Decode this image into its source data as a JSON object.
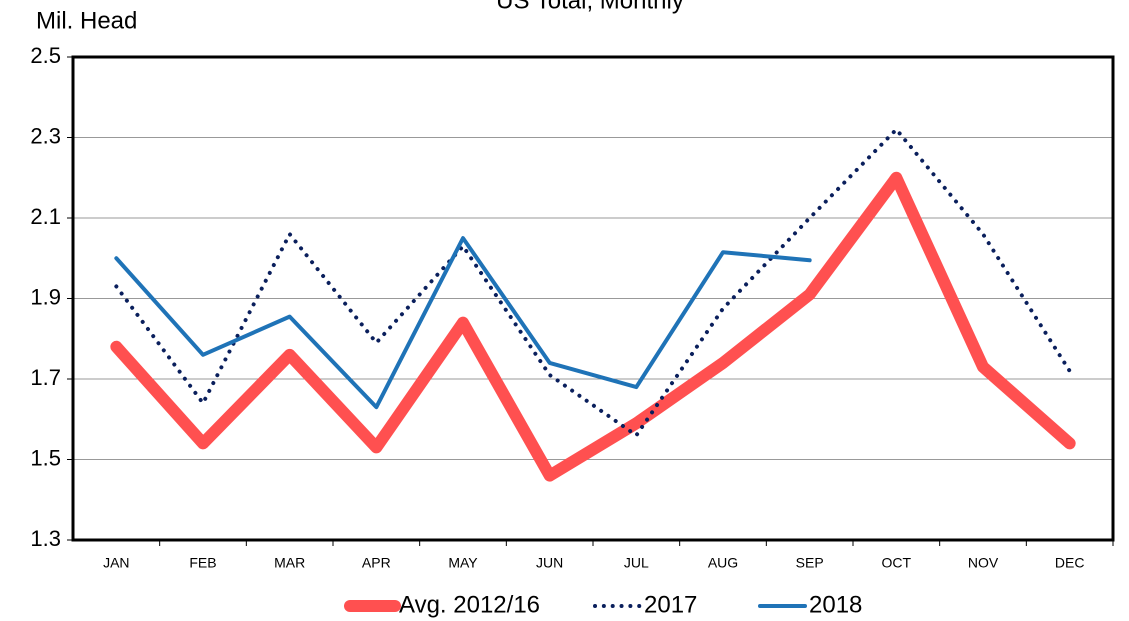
{
  "chart_data": {
    "type": "line",
    "title": "US Total, Monthly",
    "y_label": "Mil. Head",
    "categories": [
      "JAN",
      "FEB",
      "MAR",
      "APR",
      "MAY",
      "JUN",
      "JUL",
      "AUG",
      "SEP",
      "OCT",
      "NOV",
      "DEC"
    ],
    "series": [
      {
        "name": "Avg. 2012/16",
        "color": "#ff5050",
        "width": 12,
        "dash": "solid",
        "values": [
          1.78,
          1.54,
          1.76,
          1.53,
          1.84,
          1.46,
          1.59,
          1.74,
          1.91,
          2.2,
          1.73,
          1.54
        ]
      },
      {
        "name": "2017",
        "color": "#0a1f5c",
        "width": 4,
        "dash": "dotted",
        "values": [
          1.93,
          1.64,
          2.06,
          1.79,
          2.03,
          1.71,
          1.56,
          1.875,
          2.1,
          2.32,
          2.06,
          1.72
        ]
      },
      {
        "name": "2018",
        "color": "#1f73b7",
        "width": 4,
        "dash": "solid",
        "values": [
          2.0,
          1.76,
          1.855,
          1.63,
          2.05,
          1.74,
          1.68,
          2.015,
          1.995,
          null,
          null,
          null
        ]
      }
    ],
    "ylim": [
      1.3,
      2.5
    ],
    "yticks": [
      1.3,
      1.5,
      1.7,
      1.9,
      2.1,
      2.3,
      2.5
    ],
    "grid": true,
    "legend": "bottom"
  }
}
